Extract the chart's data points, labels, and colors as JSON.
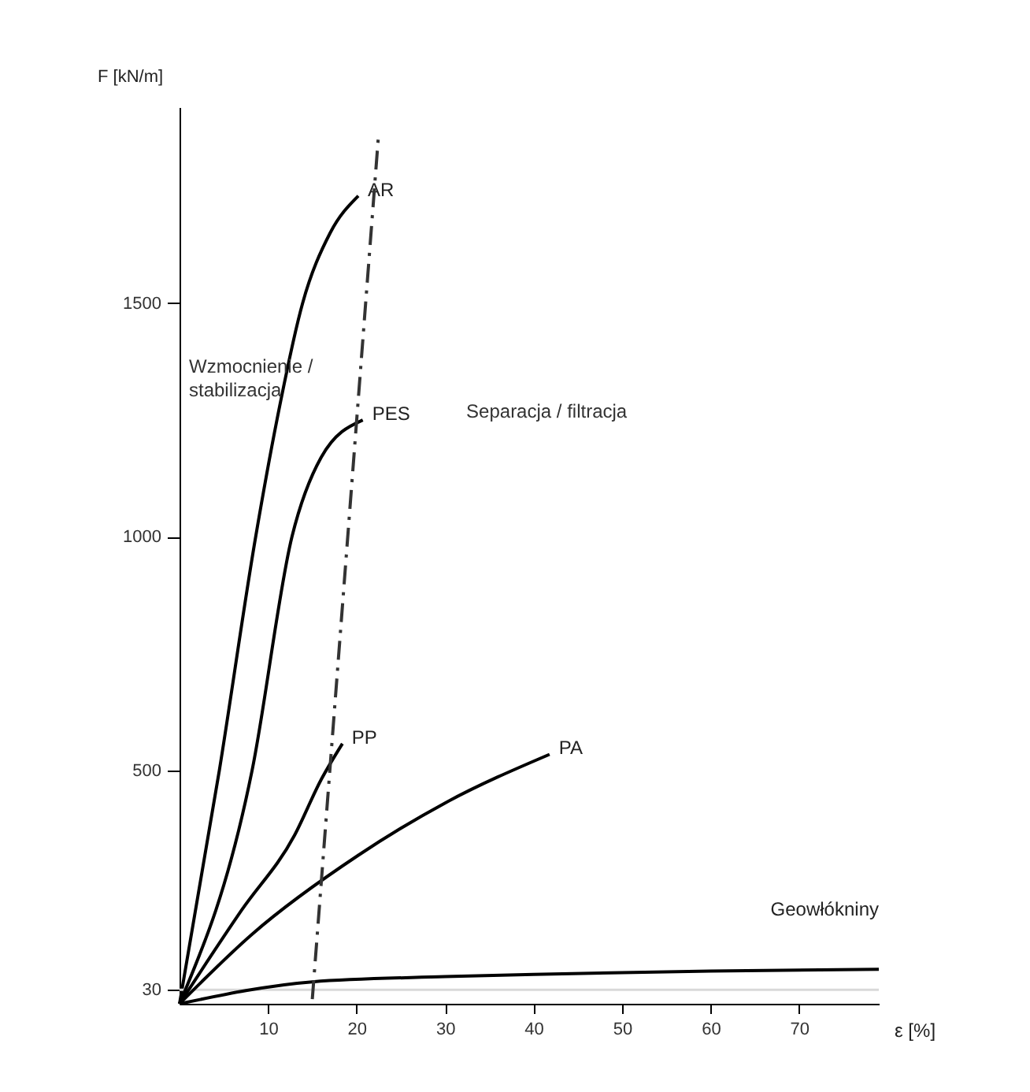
{
  "chart_data": {
    "type": "line",
    "xlabel": "ε [%]",
    "ylabel": "F [kN/m]",
    "xlim": [
      0,
      79
    ],
    "ylim": [
      0,
      1920
    ],
    "xticks": [
      10,
      20,
      30,
      40,
      50,
      60,
      70
    ],
    "yticks": [
      30,
      500,
      1000,
      1500
    ],
    "grid": false,
    "marker": "none",
    "line_style": "solid",
    "annotations": [
      "Wzmocnienie / stabilizacja",
      "Separacja / filtracja"
    ],
    "ref_lines": [
      {
        "axis": "y",
        "value": 30,
        "color": "#d9d9d9"
      }
    ],
    "series": [
      {
        "name": "AR",
        "color": "#000000",
        "x": [
          0,
          4.5,
          8.6,
          11,
          13.9,
          17,
          20.2
        ],
        "values": [
          0,
          500,
          1000,
          1250,
          1500,
          1650,
          1730
        ]
      },
      {
        "name": "PES",
        "color": "#000000",
        "x": [
          0,
          8.2,
          12.7,
          16,
          20.7
        ],
        "values": [
          0,
          500,
          1000,
          1170,
          1250
        ]
      },
      {
        "name": "PP",
        "color": "#000000",
        "x": [
          0,
          7,
          13,
          16,
          18.4
        ],
        "values": [
          0,
          200,
          361,
          480,
          557
        ]
      },
      {
        "name": "PA",
        "color": "#000000",
        "x": [
          0,
          8.2,
          20.2,
          30,
          41.8
        ],
        "values": [
          0,
          149,
          318,
          430,
          534
        ]
      },
      {
        "name": "Geowłókniny",
        "color": "#000000",
        "x": [
          0,
          15,
          30,
          40,
          60,
          79
        ],
        "values": [
          0,
          47,
          58,
          63,
          70,
          74
        ]
      },
      {
        "color": "#333333",
        "line_style": "dashed",
        "x": [
          15,
          22.5
        ],
        "values": [
          10,
          1865
        ]
      }
    ]
  }
}
